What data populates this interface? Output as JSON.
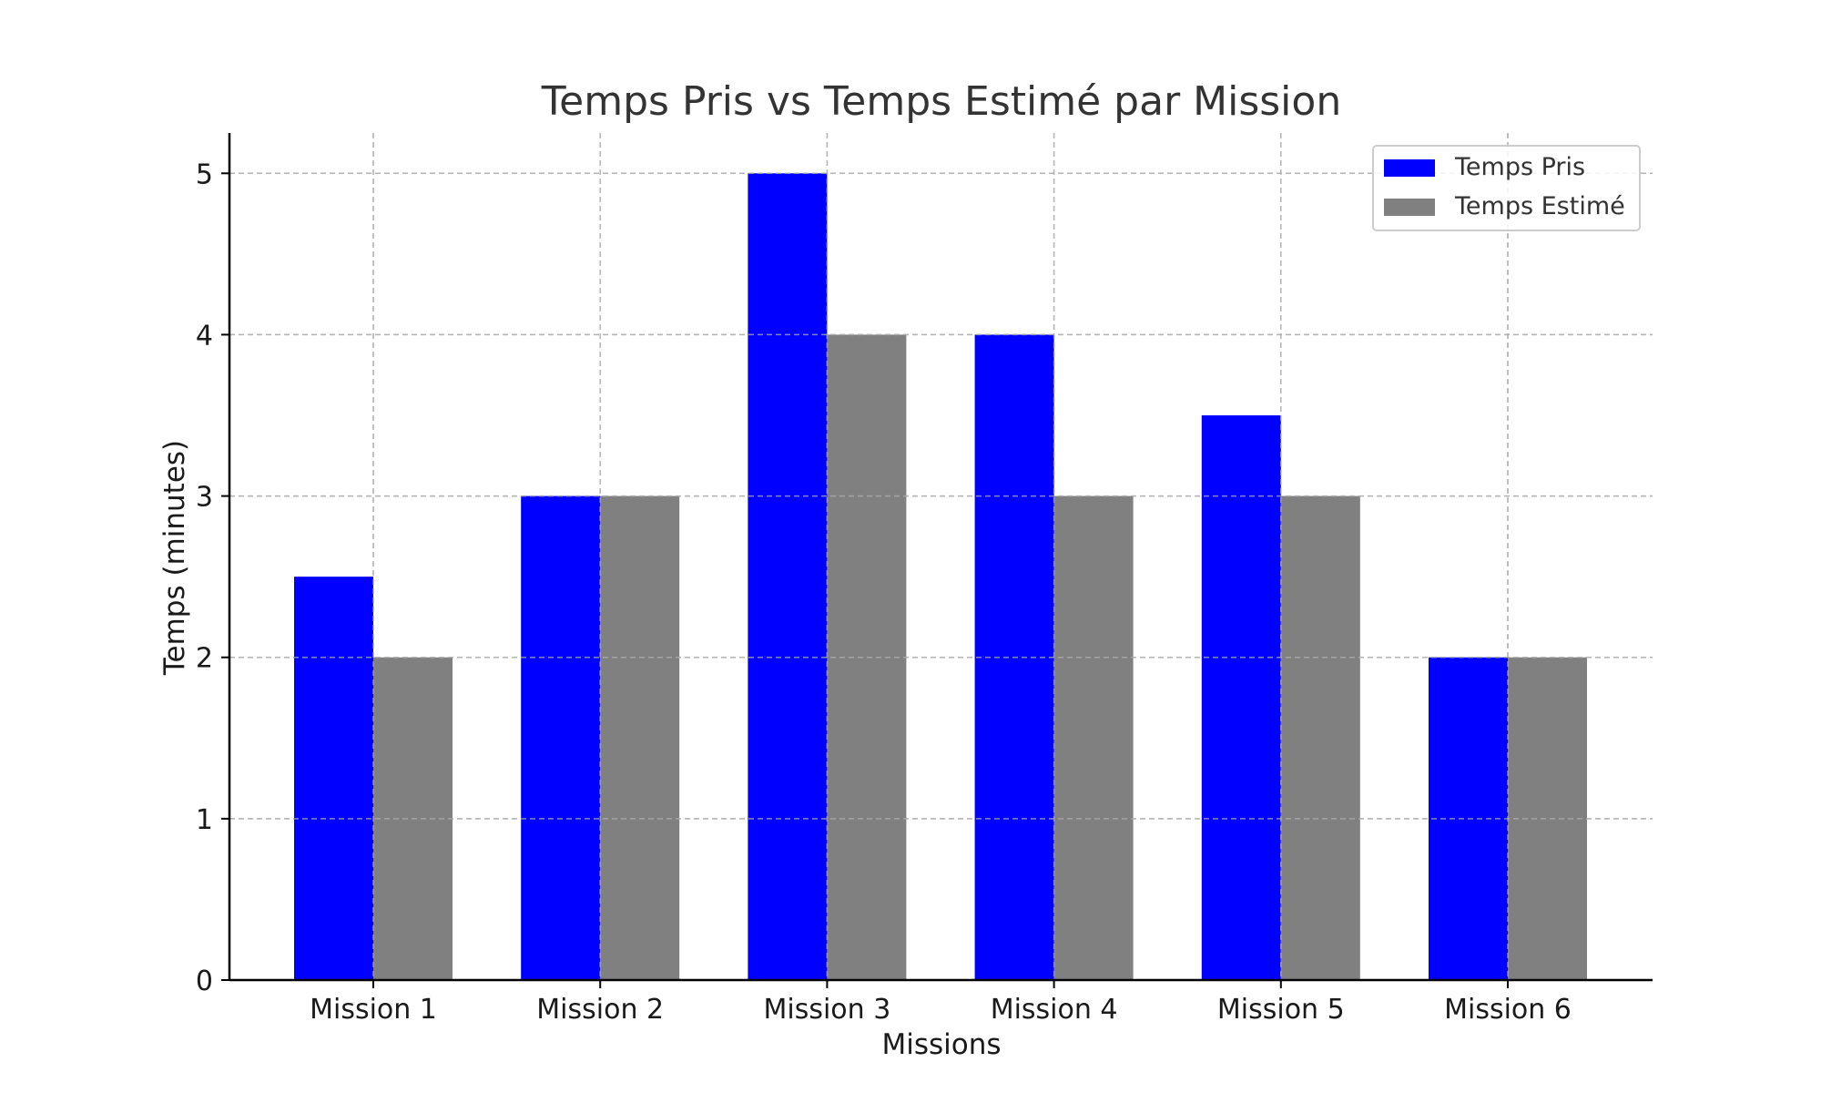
{
  "chart_data": {
    "type": "bar",
    "title": "Temps Pris vs Temps Estimé par Mission",
    "xlabel": "Missions",
    "ylabel": "Temps (minutes)",
    "categories": [
      "Mission 1",
      "Mission 2",
      "Mission 3",
      "Mission 4",
      "Mission 5",
      "Mission 6"
    ],
    "series": [
      {
        "name": "Temps Pris",
        "color": "#0000ff",
        "values": [
          2.5,
          3,
          5,
          4,
          3.5,
          2
        ]
      },
      {
        "name": "Temps Estimé",
        "color": "#808080",
        "values": [
          2,
          3,
          4,
          3,
          3,
          2
        ]
      }
    ],
    "ylim": [
      0,
      5.25
    ],
    "yticks": [
      0,
      1,
      2,
      3,
      4,
      5
    ],
    "grid": true,
    "legend_position": "top-right"
  }
}
